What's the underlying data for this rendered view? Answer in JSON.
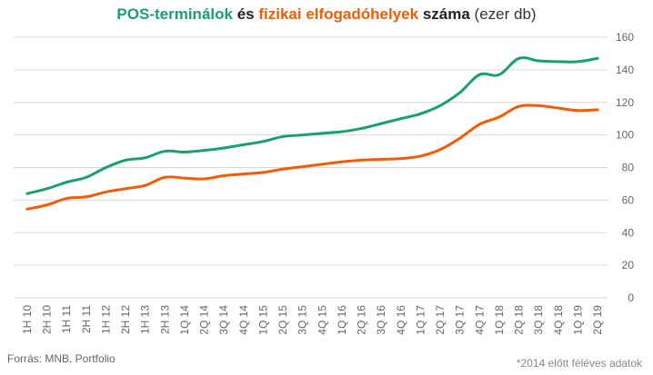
{
  "title": {
    "part1": "POS-terminálok",
    "part2": "és",
    "part3": "fizikai elfogadóhelyek",
    "part4": "száma",
    "part5": "(ezer db)"
  },
  "source": "Forrás:  MNB, Portfolio",
  "note": "*2014 előtt féléves adatok",
  "colors": {
    "pos": "#1a9e77",
    "fiz": "#f25c05",
    "grid": "#d9d9d9"
  },
  "chart_data": {
    "type": "line",
    "categories": [
      "1H 10",
      "2H 10",
      "1H 11",
      "2H 11",
      "1H 12",
      "2H 12",
      "1H 13",
      "2H 13",
      "1Q 14",
      "2Q 14",
      "3Q 14",
      "4Q 14",
      "1Q 15",
      "2Q 15",
      "3Q 15",
      "4Q 15",
      "1Q 16",
      "2Q 16",
      "3Q 16",
      "4Q 16",
      "1Q 17",
      "2Q 17",
      "3Q 17",
      "4Q 17",
      "1Q 18",
      "2Q 18",
      "3Q 18",
      "4Q 18",
      "1Q 19",
      "2Q 19"
    ],
    "series": [
      {
        "name": "POS-terminálok",
        "color": "#1a9e77",
        "values": [
          64,
          67,
          71,
          74,
          80,
          84.5,
          86,
          90,
          89.5,
          90.5,
          92,
          94,
          96,
          99,
          100,
          101,
          102,
          104,
          107,
          110,
          113,
          118,
          126,
          137,
          137,
          147,
          145.5,
          145,
          145,
          147
        ]
      },
      {
        "name": "fizikai elfogadóhelyek",
        "color": "#f25c05",
        "values": [
          54.5,
          57,
          61,
          62,
          65,
          67,
          69,
          74,
          73.5,
          73,
          75,
          76,
          77,
          79,
          80.5,
          82,
          83.5,
          84.5,
          85,
          85.5,
          87,
          91,
          98,
          106.5,
          111,
          117.5,
          118,
          116.5,
          115,
          115.5
        ]
      }
    ],
    "ylim": [
      0,
      160
    ],
    "yticks": [
      0,
      20,
      40,
      60,
      80,
      100,
      120,
      140,
      160
    ],
    "grid": true,
    "y_axis_side": "right"
  }
}
